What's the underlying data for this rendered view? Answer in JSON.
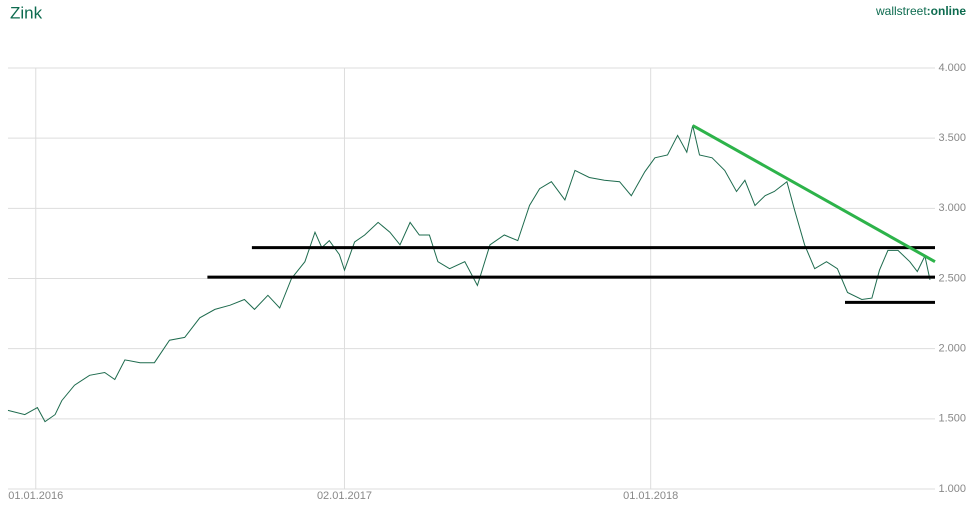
{
  "chart_data": {
    "type": "line",
    "title": "Zink",
    "brand": [
      "wallstreet",
      ":online"
    ],
    "x": [
      "2015-11-29",
      "2015-12-19",
      "2016-01-03",
      "2016-01-12",
      "2016-01-24",
      "2016-02-01",
      "2016-02-16",
      "2016-03-05",
      "2016-03-23",
      "2016-04-04",
      "2016-04-16",
      "2016-05-04",
      "2016-05-21",
      "2016-06-08",
      "2016-06-26",
      "2016-07-14",
      "2016-08-01",
      "2016-08-19",
      "2016-09-05",
      "2016-09-17",
      "2016-10-03",
      "2016-10-17",
      "2016-10-31",
      "2016-11-16",
      "2016-11-28",
      "2016-12-06",
      "2016-12-15",
      "2016-12-27",
      "2017-01-02",
      "2017-01-14",
      "2017-01-26",
      "2017-02-11",
      "2017-02-25",
      "2017-03-09",
      "2017-03-21",
      "2017-04-01",
      "2017-04-13",
      "2017-04-23",
      "2017-05-07",
      "2017-05-25",
      "2017-06-09",
      "2017-06-24",
      "2017-07-11",
      "2017-07-27",
      "2017-08-10",
      "2017-08-22",
      "2017-09-05",
      "2017-09-21",
      "2017-10-03",
      "2017-10-20",
      "2017-11-07",
      "2017-11-25",
      "2017-12-09",
      "2017-12-25",
      "2018-01-06",
      "2018-01-21",
      "2018-02-02",
      "2018-02-13",
      "2018-02-20",
      "2018-02-28",
      "2018-03-15",
      "2018-03-30",
      "2018-04-13",
      "2018-04-23",
      "2018-05-05",
      "2018-05-17",
      "2018-05-28",
      "2018-06-12",
      "2018-06-21",
      "2018-07-03",
      "2018-07-15",
      "2018-07-29",
      "2018-08-11",
      "2018-08-23",
      "2018-09-09",
      "2018-09-21",
      "2018-09-30",
      "2018-10-10",
      "2018-10-22",
      "2018-11-05",
      "2018-11-14",
      "2018-11-23",
      "2018-11-29"
    ],
    "series": [
      {
        "color": "#1e6b4e",
        "values": [
          1.56,
          1.53,
          1.58,
          1.48,
          1.53,
          1.63,
          1.74,
          1.81,
          1.83,
          1.78,
          1.92,
          1.9,
          1.9,
          2.06,
          2.08,
          2.22,
          2.28,
          2.31,
          2.35,
          2.28,
          2.38,
          2.29,
          2.5,
          2.62,
          2.83,
          2.72,
          2.77,
          2.67,
          2.56,
          2.76,
          2.81,
          2.9,
          2.83,
          2.74,
          2.9,
          2.81,
          2.81,
          2.62,
          2.57,
          2.62,
          2.45,
          2.74,
          2.81,
          2.77,
          3.02,
          3.14,
          3.19,
          3.06,
          3.27,
          3.22,
          3.2,
          3.19,
          3.09,
          3.26,
          3.36,
          3.38,
          3.52,
          3.4,
          3.59,
          3.38,
          3.36,
          3.27,
          3.12,
          3.2,
          3.02,
          3.09,
          3.12,
          3.19,
          2.99,
          2.74,
          2.57,
          2.62,
          2.57,
          2.4,
          2.35,
          2.36,
          2.56,
          2.7,
          2.7,
          2.62,
          2.55,
          2.66,
          2.49
        ]
      }
    ],
    "lines": [
      {
        "x": [
          "2016-09-14",
          "2018-12-05"
        ],
        "values": [
          2.72,
          2.72
        ],
        "color": "#000000"
      },
      {
        "x": [
          "2016-07-23",
          "2018-12-05"
        ],
        "values": [
          2.51,
          2.51
        ],
        "color": "#000000"
      },
      {
        "x": [
          "2018-08-20",
          "2018-12-05"
        ],
        "values": [
          2.33,
          2.33
        ],
        "color": "#000000"
      },
      {
        "x": [
          "2018-02-20",
          "2018-12-05"
        ],
        "values": [
          3.59,
          2.62
        ],
        "color": "#2db34a"
      }
    ],
    "xlim": [
      "2015-11-29",
      "2018-12-05"
    ],
    "xticks": [
      {
        "value": "2016-01-01",
        "label": "01.01.2016"
      },
      {
        "value": "2017-01-02",
        "label": "02.01.2017"
      },
      {
        "value": "2018-01-01",
        "label": "01.01.2018"
      }
    ],
    "ylim": [
      1,
      4
    ],
    "yticks": [
      {
        "value": 1,
        "label": "1.000"
      },
      {
        "value": 1.5,
        "label": "1.500"
      },
      {
        "value": 2,
        "label": "2.000"
      },
      {
        "value": 2.5,
        "label": "2.500"
      },
      {
        "value": 3,
        "label": "3.000"
      },
      {
        "value": 3.5,
        "label": "3.500"
      },
      {
        "value": 4,
        "label": "4.000"
      }
    ],
    "grid": true
  }
}
